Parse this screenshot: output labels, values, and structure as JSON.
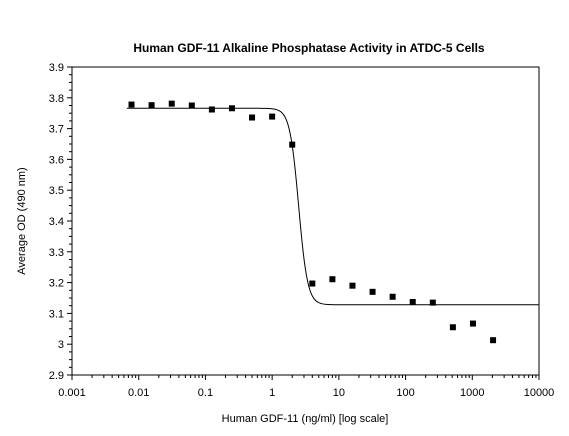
{
  "chart_data": {
    "type": "scatter",
    "title": "Human GDF-11 Alkaline Phosphatase Activity in ATDC-5 Cells",
    "xlabel": "Human GDF-11 (ng/ml) [log scale]",
    "ylabel": "Average OD (490 nm)",
    "x_scale": "log",
    "xlim": [
      0.001,
      10000
    ],
    "ylim": [
      2.9,
      3.9
    ],
    "grid": false,
    "x_ticks": [
      {
        "value": 0.001,
        "label": "0.001"
      },
      {
        "value": 0.01,
        "label": "0.01"
      },
      {
        "value": 0.1,
        "label": "0.1"
      },
      {
        "value": 1,
        "label": "1"
      },
      {
        "value": 10,
        "label": "10"
      },
      {
        "value": 100,
        "label": "100"
      },
      {
        "value": 1000,
        "label": "1000"
      },
      {
        "value": 10000,
        "label": "10000"
      }
    ],
    "y_ticks": [
      {
        "value": 2.9,
        "label": "2.9"
      },
      {
        "value": 3.0,
        "label": "3"
      },
      {
        "value": 3.1,
        "label": "3.1"
      },
      {
        "value": 3.2,
        "label": "3.2"
      },
      {
        "value": 3.3,
        "label": "3.3"
      },
      {
        "value": 3.4,
        "label": "3.4"
      },
      {
        "value": 3.5,
        "label": "3.5"
      },
      {
        "value": 3.6,
        "label": "3.6"
      },
      {
        "value": 3.7,
        "label": "3.7"
      },
      {
        "value": 3.8,
        "label": "3.8"
      },
      {
        "value": 3.9,
        "label": "3.9"
      }
    ],
    "series": [
      {
        "type": "scatter",
        "marker": "square",
        "color": "#000000",
        "x": [
          0.0078,
          0.0156,
          0.03125,
          0.0625,
          0.125,
          0.25,
          0.5,
          1,
          2,
          4,
          8,
          16,
          32,
          64,
          128,
          256,
          512,
          1024,
          2048
        ],
        "y": [
          3.778,
          3.776,
          3.781,
          3.775,
          3.762,
          3.766,
          3.736,
          3.739,
          3.648,
          3.197,
          3.211,
          3.19,
          3.17,
          3.154,
          3.137,
          3.135,
          3.055,
          3.067,
          3.013
        ]
      },
      {
        "type": "line",
        "fit": "four-parameter logistic",
        "color": "#000000",
        "top": 3.766,
        "bottom": 3.128,
        "ec50": 2.5,
        "hill_slope": 6.5
      }
    ]
  }
}
